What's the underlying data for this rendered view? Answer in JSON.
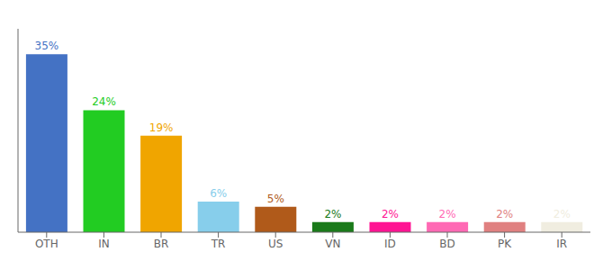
{
  "chart_data": {
    "type": "bar",
    "categories": [
      "OTH",
      "IN",
      "BR",
      "TR",
      "US",
      "VN",
      "ID",
      "BD",
      "PK",
      "IR"
    ],
    "values": [
      35,
      24,
      19,
      6,
      5,
      2,
      2,
      2,
      2,
      2
    ],
    "value_labels": [
      "35%",
      "24%",
      "19%",
      "6%",
      "5%",
      "2%",
      "2%",
      "2%",
      "2%",
      "2%"
    ],
    "colors": [
      "#4472c4",
      "#22cc22",
      "#f0a500",
      "#87ceeb",
      "#b05a1a",
      "#1a7a1a",
      "#ff1493",
      "#ff69b4",
      "#e08080",
      "#f0ede0"
    ],
    "ylim": [
      0,
      40
    ],
    "data_labels": true,
    "tick_labels": "x",
    "grid": false
  }
}
